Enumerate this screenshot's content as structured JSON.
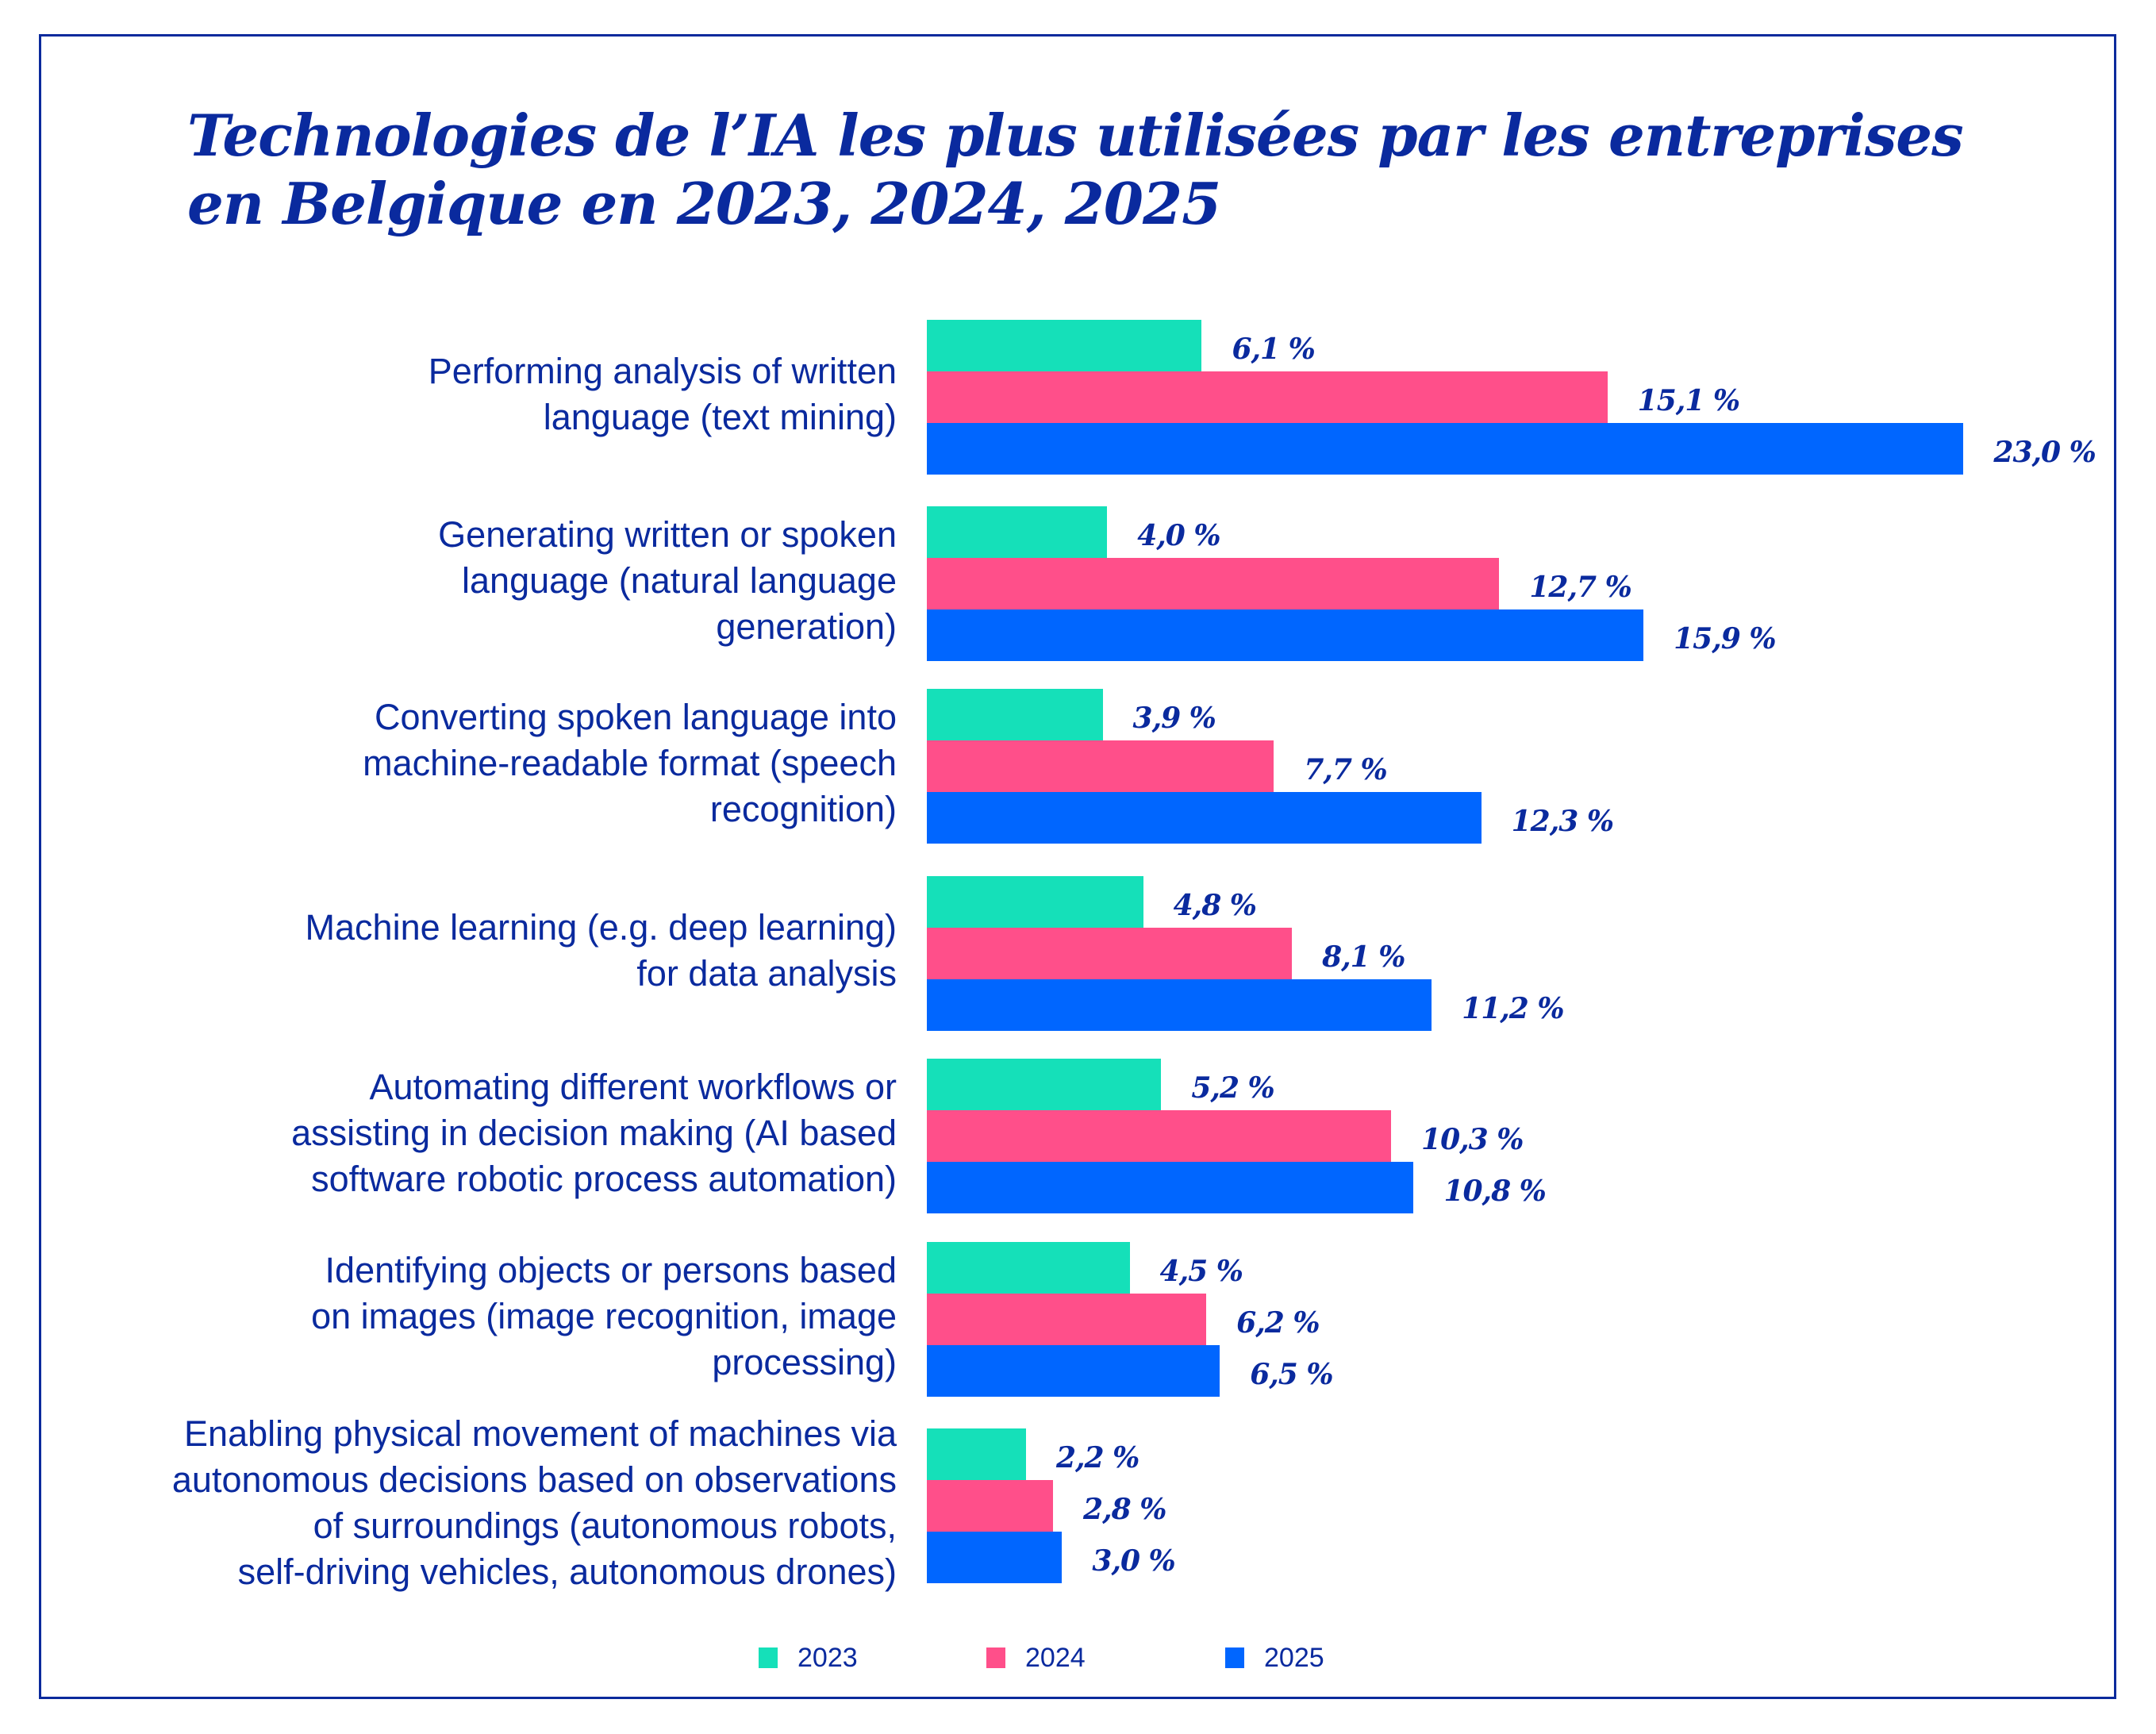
{
  "chart_data": {
    "type": "bar",
    "orientation": "horizontal",
    "title": "Technologies de l’IA les plus utilisées par les entreprises en Belgique en 2023, 2024, 2025",
    "title_lines": [
      "Technologies de l’IA les plus utilisées par les entreprises",
      "en Belgique en 2023, 2024, 2025"
    ],
    "xlabel": "",
    "ylabel": "",
    "xlim": [
      0,
      23
    ],
    "grid": false,
    "legend_position": "bottom",
    "value_suffix": " %",
    "decimal_separator": ",",
    "categories": [
      "Performing analysis of written language (text mining)",
      "Generating written or spoken language (natural language generation)",
      "Converting spoken language into machine-readable format (speech recognition)",
      "Machine learning (e.g. deep learning) for data analysis",
      "Automating different workflows or assisting in decision making (AI based software robotic process automation)",
      "Identifying objects or persons based on images (image recognition, image processing)",
      "Enabling physical movement of machines via autonomous decisions based on observations of surroundings (autonomous robots, self-driving vehicles, autonomous drones)"
    ],
    "category_label_lines": [
      [
        "Performing analysis of written",
        "language (text mining)"
      ],
      [
        "Generating written or spoken",
        "language (natural language",
        "generation)"
      ],
      [
        "Converting spoken language into",
        "machine-readable format (speech",
        "recognition)"
      ],
      [
        "Machine learning (e.g. deep learning)",
        "for data analysis"
      ],
      [
        "Automating different workflows or",
        "assisting in decision making (AI based",
        "software robotic process automation)"
      ],
      [
        "Identifying objects or persons based",
        "on images (image recognition, image",
        "processing)"
      ],
      [
        "Enabling physical movement of machines via",
        "autonomous decisions based on observations",
        "of surroundings (autonomous robots,",
        "self-driving vehicles, autonomous drones)"
      ]
    ],
    "series": [
      {
        "name": "2023",
        "color": "#15e0b9",
        "values": [
          6.1,
          4.0,
          3.9,
          4.8,
          5.2,
          4.5,
          2.2
        ],
        "labels": [
          "6,1 %",
          "4,0 %",
          "3,9 %",
          "4,8 %",
          "5,2 %",
          "4,5 %",
          "2,2 %"
        ]
      },
      {
        "name": "2024",
        "color": "#ff4f8a",
        "values": [
          15.1,
          12.7,
          7.7,
          8.1,
          10.3,
          6.2,
          2.8
        ],
        "labels": [
          "15,1 %",
          "12,7 %",
          "7,7 %",
          "8,1 %",
          "10,3 %",
          "6,2 %",
          "2,8 %"
        ]
      },
      {
        "name": "2025",
        "color": "#0066ff",
        "values": [
          23.0,
          15.9,
          12.3,
          11.2,
          10.8,
          6.5,
          3.0
        ],
        "labels": [
          "23,0 %",
          "15,9 %",
          "12,3 %",
          "11,2 %",
          "10,8 %",
          "6,5 %",
          "3,0 %"
        ]
      }
    ]
  },
  "colors": {
    "text": "#0a2a9e",
    "frame": "#0a2a9c",
    "background": "#ffffff"
  }
}
